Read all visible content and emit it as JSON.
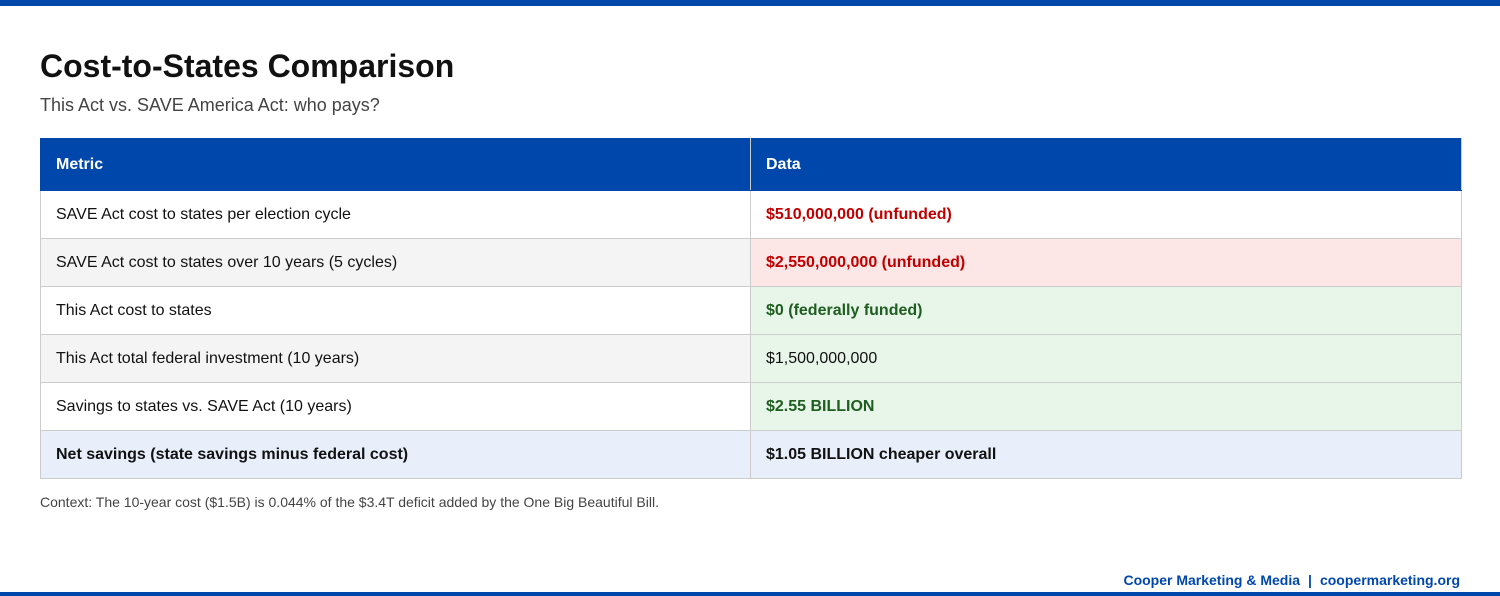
{
  "header": {
    "title": "Cost-to-States Comparison",
    "subtitle": "This Act vs. SAVE America Act: who pays?"
  },
  "table": {
    "columns": [
      "Metric",
      "Data"
    ],
    "rows": [
      [
        "SAVE Act cost to states per election cycle",
        "$510,000,000 (unfunded)"
      ],
      [
        "SAVE Act cost to states over 10 years (5 cycles)",
        "$2,550,000,000 (unfunded)"
      ],
      [
        "This Act cost to states",
        "$0 (federally funded)"
      ],
      [
        "This Act total federal investment (10 years)",
        "$1,500,000,000"
      ],
      [
        "Savings to states vs. SAVE Act (10 years)",
        "$2.55 BILLION"
      ],
      [
        "Net savings (state savings minus federal cost)",
        "$1.05 BILLION cheaper overall"
      ]
    ]
  },
  "context": "Context: The 10-year cost ($1.5B) is 0.044% of the $3.4T deficit added by the One Big Beautiful Bill.",
  "footer": {
    "brand": "Cooper Marketing & Media",
    "separator": "|",
    "site": "coopermarketing.org"
  }
}
